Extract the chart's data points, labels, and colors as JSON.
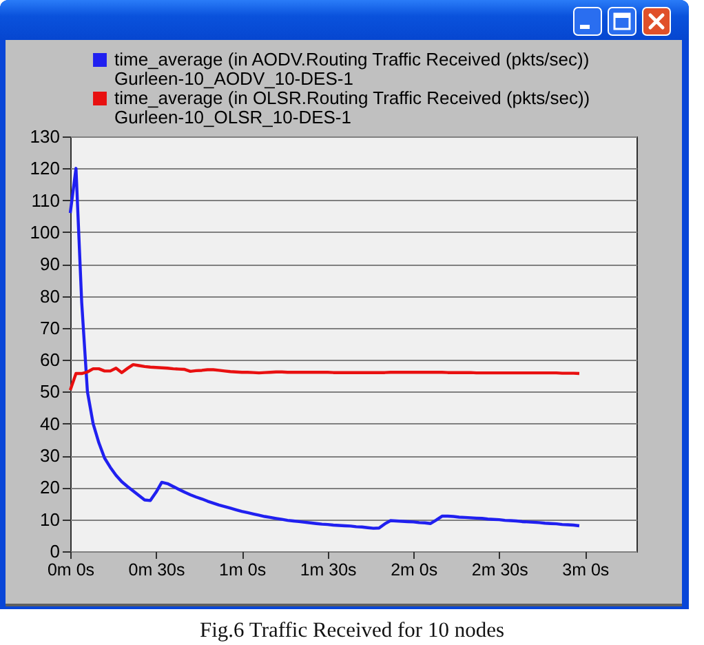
{
  "chart_data": {
    "type": "line",
    "annotations": [
      "Fig.6 Traffic Received for 10 nodes"
    ],
    "categories": [
      "0m 0s",
      null,
      null,
      null,
      null,
      null,
      null,
      null,
      null,
      null,
      null,
      null,
      null,
      null,
      null,
      "0m 30s",
      null,
      null,
      null,
      null,
      null,
      null,
      null,
      null,
      null,
      null,
      null,
      null,
      null,
      null,
      "1m 0s",
      null,
      null,
      null,
      null,
      null,
      null,
      null,
      null,
      null,
      null,
      null,
      null,
      null,
      null,
      "1m 30s",
      null,
      null,
      null,
      null,
      null,
      null,
      null,
      null,
      null,
      null,
      null,
      null,
      null,
      null,
      "2m 0s",
      null,
      null,
      null,
      null,
      null,
      null,
      null,
      null,
      null,
      null,
      null,
      null,
      null,
      null,
      "2m 30s",
      null,
      null,
      null,
      null,
      null,
      null,
      null,
      null,
      null,
      null,
      null,
      null,
      null,
      null,
      "3m 0s",
      null,
      null,
      null,
      null,
      null,
      null,
      null,
      null,
      null
    ],
    "series": [
      {
        "name": "time_average (in AODV.Routing Traffic Received (pkts/sec))\nGurleen-10_AODV_10-DES-1",
        "color": "#2020f0",
        "values": [
          106,
          120,
          78,
          50,
          40,
          34,
          29.2,
          26.3,
          23.8,
          21.8,
          20.3,
          18.9,
          17.5,
          16.1,
          15.9,
          18.5,
          21.6,
          21.2,
          20.3,
          19.4,
          18.5,
          17.7,
          17,
          16.4,
          15.7,
          15.1,
          14.5,
          14,
          13.5,
          13,
          12.5,
          12.1,
          11.7,
          11.3,
          10.9,
          10.6,
          10.3,
          10,
          9.7,
          9.5,
          9.3,
          9.1,
          8.9,
          8.7,
          8.5,
          8.4,
          8.2,
          8.1,
          8,
          7.9,
          7.7,
          7.6,
          7.4,
          7.2,
          7.3,
          8.6,
          9.6,
          9.5,
          9.4,
          9.3,
          9.2,
          9,
          8.9,
          8.7,
          9.8,
          11,
          11,
          10.9,
          10.7,
          10.6,
          10.5,
          10.4,
          10.3,
          10.1,
          10,
          9.9,
          9.7,
          9.6,
          9.5,
          9.3,
          9.2,
          9.1,
          9,
          8.8,
          8.7,
          8.6,
          8.4,
          8.3,
          8.2,
          8,
          null,
          null,
          null,
          null,
          null,
          null,
          null,
          null,
          null,
          null
        ]
      },
      {
        "name": "time_average (in OLSR.Routing Traffic Received (pkts/sec))\nGurleen-10_OLSR_10-DES-1",
        "color": "#e81010",
        "values": [
          50.5,
          55.7,
          55.7,
          56.2,
          57.2,
          57.2,
          56.5,
          56.5,
          57.4,
          56,
          57.3,
          58.5,
          58.2,
          57.9,
          57.7,
          57.6,
          57.5,
          57.4,
          57.2,
          57.1,
          57,
          56.4,
          56.6,
          56.7,
          56.9,
          56.9,
          56.7,
          56.5,
          56.3,
          56.2,
          56.1,
          56.1,
          56,
          55.9,
          56,
          56.1,
          56.2,
          56.2,
          56.1,
          56.1,
          56.1,
          56.1,
          56.1,
          56.1,
          56.1,
          56.1,
          56,
          56,
          56,
          56,
          56,
          56,
          56,
          56,
          56,
          56,
          56.1,
          56.1,
          56.1,
          56.1,
          56.1,
          56.1,
          56.1,
          56.1,
          56.1,
          56.1,
          56,
          56,
          56,
          56,
          56,
          55.9,
          55.9,
          55.9,
          55.9,
          55.9,
          55.9,
          55.9,
          55.9,
          55.9,
          55.9,
          55.9,
          55.9,
          55.9,
          55.9,
          55.9,
          55.8,
          55.8,
          55.8,
          55.7,
          null,
          null,
          null,
          null,
          null,
          null,
          null,
          null,
          null,
          null
        ]
      }
    ],
    "ylim": [
      0,
      130
    ],
    "yticks": [
      0,
      10,
      20,
      30,
      40,
      50,
      60,
      70,
      80,
      90,
      100,
      110,
      120,
      130
    ],
    "grid": "y",
    "legend": "top",
    "marker": "none",
    "line_style": "solid"
  }
}
